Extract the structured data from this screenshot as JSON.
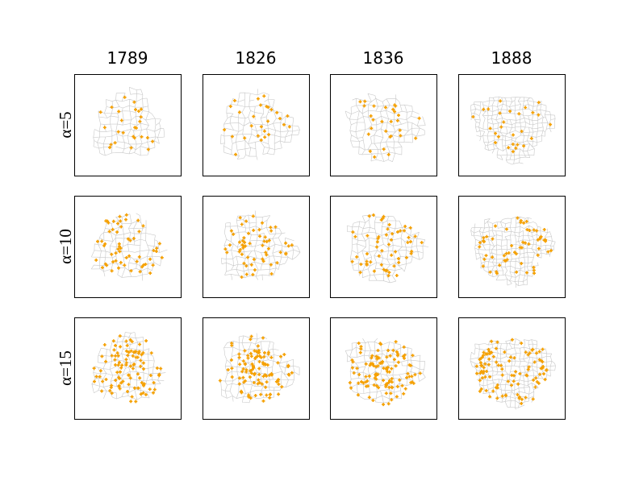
{
  "columns": [
    "1789",
    "1826",
    "1836",
    "1888"
  ],
  "rows": [
    "α=5",
    "α=10",
    "α=15"
  ]
}
